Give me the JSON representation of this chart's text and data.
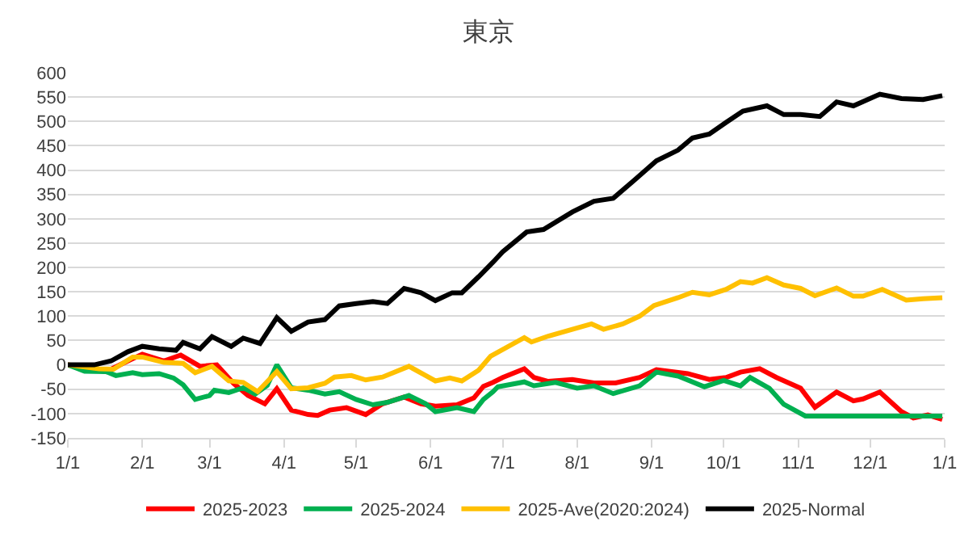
{
  "chart_data": {
    "type": "line",
    "title": "東京",
    "xlim": [
      "2025-01-01",
      "2026-01-01"
    ],
    "xticks": [
      {
        "value": "2025-01-01",
        "label": "1/1"
      },
      {
        "value": "2025-02-01",
        "label": "2/1"
      },
      {
        "value": "2025-03-01",
        "label": "3/1"
      },
      {
        "value": "2025-04-01",
        "label": "4/1"
      },
      {
        "value": "2025-05-01",
        "label": "5/1"
      },
      {
        "value": "2025-06-01",
        "label": "6/1"
      },
      {
        "value": "2025-07-01",
        "label": "7/1"
      },
      {
        "value": "2025-08-01",
        "label": "8/1"
      },
      {
        "value": "2025-09-01",
        "label": "9/1"
      },
      {
        "value": "2025-10-01",
        "label": "10/1"
      },
      {
        "value": "2025-11-01",
        "label": "11/1"
      },
      {
        "value": "2025-12-01",
        "label": "12/1"
      },
      {
        "value": "2026-01-01",
        "label": "1/1"
      }
    ],
    "ylim": [
      -150,
      600
    ],
    "yticks": [
      -150,
      -100,
      -50,
      0,
      50,
      100,
      150,
      200,
      250,
      300,
      350,
      400,
      450,
      500,
      550,
      600
    ],
    "grid": "y",
    "legend": "bottom",
    "marker": "none",
    "line_style": "solid",
    "series": [
      {
        "name": "2025-2023",
        "color": "#ff0000",
        "x": [
          "2025-01-01",
          "2025-01-17",
          "2025-01-26",
          "2025-02-01",
          "2025-02-10",
          "2025-02-17",
          "2025-02-25",
          "2025-03-04",
          "2025-03-11",
          "2025-03-17",
          "2025-03-24",
          "2025-03-29",
          "2025-04-04",
          "2025-04-11",
          "2025-04-15",
          "2025-04-20",
          "2025-04-27",
          "2025-05-05",
          "2025-05-12",
          "2025-05-21",
          "2025-05-28",
          "2025-06-03",
          "2025-06-12",
          "2025-06-19",
          "2025-06-23",
          "2025-06-27",
          "2025-07-01",
          "2025-07-10",
          "2025-07-14",
          "2025-07-20",
          "2025-07-30",
          "2025-08-08",
          "2025-08-17",
          "2025-08-27",
          "2025-09-03",
          "2025-09-08",
          "2025-09-16",
          "2025-09-25",
          "2025-10-02",
          "2025-10-08",
          "2025-10-16",
          "2025-10-23",
          "2025-11-02",
          "2025-11-08",
          "2025-11-17",
          "2025-11-24",
          "2025-11-28",
          "2025-12-05",
          "2025-12-14",
          "2025-12-19",
          "2025-12-25",
          "2025-12-31"
        ],
        "values": [
          0,
          -14,
          8,
          22,
          8,
          20,
          -3,
          0,
          -38,
          -63,
          -80,
          -49,
          -93,
          -102,
          -104,
          -93,
          -88,
          -102,
          -80,
          -66,
          -80,
          -85,
          -82,
          -68,
          -44,
          -36,
          -26,
          -8,
          -26,
          -34,
          -30,
          -37,
          -37,
          -26,
          -10,
          -13,
          -18,
          -30,
          -26,
          -15,
          -8,
          -26,
          -48,
          -87,
          -56,
          -74,
          -70,
          -56,
          -96,
          -109,
          -103,
          -112
        ]
      },
      {
        "name": "2025-2024",
        "color": "#00b050",
        "x": [
          "2025-01-01",
          "2025-01-08",
          "2025-01-17",
          "2025-01-21",
          "2025-01-28",
          "2025-02-01",
          "2025-02-08",
          "2025-02-14",
          "2025-02-18",
          "2025-02-23",
          "2025-03-01",
          "2025-03-03",
          "2025-03-09",
          "2025-03-15",
          "2025-03-20",
          "2025-03-25",
          "2025-03-29",
          "2025-04-04",
          "2025-04-11",
          "2025-04-18",
          "2025-04-24",
          "2025-05-01",
          "2025-05-08",
          "2025-05-14",
          "2025-05-23",
          "2025-05-30",
          "2025-06-03",
          "2025-06-12",
          "2025-06-19",
          "2025-06-23",
          "2025-06-27",
          "2025-06-29",
          "2025-07-10",
          "2025-07-14",
          "2025-07-23",
          "2025-08-01",
          "2025-08-08",
          "2025-08-16",
          "2025-08-27",
          "2025-09-03",
          "2025-09-12",
          "2025-09-23",
          "2025-10-01",
          "2025-10-08",
          "2025-10-12",
          "2025-10-20",
          "2025-10-26",
          "2025-11-04",
          "2025-12-31"
        ],
        "values": [
          0,
          -13,
          -14,
          -22,
          -16,
          -20,
          -18,
          -27,
          -41,
          -71,
          -63,
          -52,
          -57,
          -47,
          -60,
          -42,
          0,
          -47,
          -52,
          -60,
          -55,
          -71,
          -82,
          -77,
          -63,
          -80,
          -96,
          -88,
          -96,
          -71,
          -55,
          -45,
          -35,
          -43,
          -36,
          -48,
          -43,
          -59,
          -43,
          -15,
          -23,
          -45,
          -32,
          -43,
          -26,
          -48,
          -81,
          -105,
          -105
        ]
      },
      {
        "name": "2025-Ave(2020:2024)",
        "color": "#ffc000",
        "x": [
          "2025-01-01",
          "2025-01-14",
          "2025-01-20",
          "2025-01-28",
          "2025-02-01",
          "2025-02-10",
          "2025-02-18",
          "2025-02-23",
          "2025-03-02",
          "2025-03-09",
          "2025-03-15",
          "2025-03-21",
          "2025-03-29",
          "2025-04-04",
          "2025-04-11",
          "2025-04-18",
          "2025-04-22",
          "2025-04-29",
          "2025-05-05",
          "2025-05-12",
          "2025-05-23",
          "2025-05-30",
          "2025-06-03",
          "2025-06-09",
          "2025-06-14",
          "2025-06-21",
          "2025-06-26",
          "2025-07-10",
          "2025-07-13",
          "2025-07-20",
          "2025-07-30",
          "2025-08-07",
          "2025-08-12",
          "2025-08-20",
          "2025-08-27",
          "2025-09-02",
          "2025-09-12",
          "2025-09-18",
          "2025-09-25",
          "2025-10-02",
          "2025-10-08",
          "2025-10-13",
          "2025-10-19",
          "2025-10-26",
          "2025-11-02",
          "2025-11-08",
          "2025-11-17",
          "2025-11-24",
          "2025-11-28",
          "2025-12-06",
          "2025-12-16",
          "2025-12-23",
          "2025-12-31"
        ],
        "values": [
          0,
          -8,
          -9,
          16,
          16,
          5,
          3,
          -16,
          -3,
          -33,
          -36,
          -55,
          -14,
          -49,
          -47,
          -38,
          -25,
          -22,
          -31,
          -25,
          -3,
          -22,
          -33,
          -27,
          -33,
          -11,
          18,
          56,
          47,
          59,
          73,
          84,
          73,
          84,
          100,
          122,
          138,
          149,
          144,
          155,
          171,
          168,
          179,
          164,
          157,
          142,
          158,
          141,
          141,
          155,
          133,
          136,
          138
        ]
      },
      {
        "name": "2025-Normal",
        "color": "#000000",
        "x": [
          "2025-01-01",
          "2025-01-12",
          "2025-01-19",
          "2025-01-26",
          "2025-02-01",
          "2025-02-08",
          "2025-02-15",
          "2025-02-18",
          "2025-02-25",
          "2025-03-02",
          "2025-03-10",
          "2025-03-15",
          "2025-03-22",
          "2025-03-29",
          "2025-04-04",
          "2025-04-11",
          "2025-04-18",
          "2025-04-24",
          "2025-05-01",
          "2025-05-08",
          "2025-05-14",
          "2025-05-21",
          "2025-05-28",
          "2025-06-03",
          "2025-06-10",
          "2025-06-14",
          "2025-06-21",
          "2025-06-27",
          "2025-07-01",
          "2025-07-11",
          "2025-07-18",
          "2025-07-30",
          "2025-08-08",
          "2025-08-16",
          "2025-08-25",
          "2025-09-03",
          "2025-09-12",
          "2025-09-18",
          "2025-09-25",
          "2025-10-02",
          "2025-10-09",
          "2025-10-19",
          "2025-10-26",
          "2025-11-02",
          "2025-11-10",
          "2025-11-17",
          "2025-11-24",
          "2025-12-05",
          "2025-12-14",
          "2025-12-23",
          "2025-12-31"
        ],
        "values": [
          0,
          0,
          8,
          27,
          38,
          33,
          30,
          46,
          33,
          58,
          38,
          55,
          44,
          97,
          69,
          88,
          93,
          121,
          126,
          130,
          126,
          157,
          148,
          132,
          148,
          148,
          181,
          211,
          232,
          273,
          278,
          314,
          336,
          342,
          380,
          419,
          441,
          466,
          474,
          498,
          521,
          532,
          514,
          514,
          510,
          540,
          532,
          556,
          547,
          545,
          553
        ]
      }
    ]
  }
}
